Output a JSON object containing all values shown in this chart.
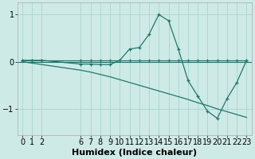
{
  "line1_x": [
    0,
    1,
    2,
    6,
    7,
    8,
    9,
    10,
    11,
    12,
    13,
    14,
    15,
    16,
    17,
    18,
    19,
    20,
    21,
    22,
    23
  ],
  "line1_y": [
    0.03,
    0.03,
    0.03,
    0.03,
    0.03,
    0.03,
    0.03,
    0.03,
    0.03,
    0.03,
    0.03,
    0.03,
    0.03,
    0.03,
    0.03,
    0.03,
    0.03,
    0.03,
    0.03,
    0.03,
    0.03
  ],
  "line2_x": [
    0,
    1,
    2,
    6,
    7,
    8,
    9,
    10,
    11,
    12,
    13,
    14,
    15,
    16,
    17,
    18,
    19,
    20,
    21,
    22,
    23
  ],
  "line2_y": [
    0.03,
    0.03,
    0.03,
    -0.05,
    -0.05,
    -0.06,
    -0.06,
    0.03,
    0.27,
    0.3,
    0.58,
    1.0,
    0.87,
    0.27,
    -0.4,
    -0.73,
    -1.05,
    -1.2,
    -0.78,
    -0.44,
    0.03
  ],
  "line3_x": [
    0,
    1,
    2,
    6,
    7,
    8,
    9,
    10,
    11,
    12,
    13,
    14,
    15,
    16,
    17,
    18,
    19,
    20,
    21,
    22,
    23
  ],
  "line3_y": [
    0.0,
    -0.03,
    -0.06,
    -0.18,
    -0.22,
    -0.27,
    -0.32,
    -0.38,
    -0.44,
    -0.5,
    -0.56,
    -0.62,
    -0.68,
    -0.74,
    -0.8,
    -0.87,
    -0.93,
    -1.0,
    -1.06,
    -1.12,
    -1.18
  ],
  "bg_color": "#ceeae6",
  "grid_color": "#aad4ce",
  "line_color": "#1a7a6e",
  "xlim": [
    -0.5,
    23.5
  ],
  "ylim": [
    -1.55,
    1.25
  ],
  "xlabel": "Humidex (Indice chaleur)",
  "xticks": [
    0,
    1,
    2,
    6,
    7,
    8,
    9,
    10,
    11,
    12,
    13,
    14,
    15,
    16,
    17,
    18,
    19,
    20,
    21,
    22,
    23
  ],
  "yticks": [
    -1,
    0,
    1
  ],
  "xlabel_fontsize": 8,
  "tick_fontsize": 7
}
